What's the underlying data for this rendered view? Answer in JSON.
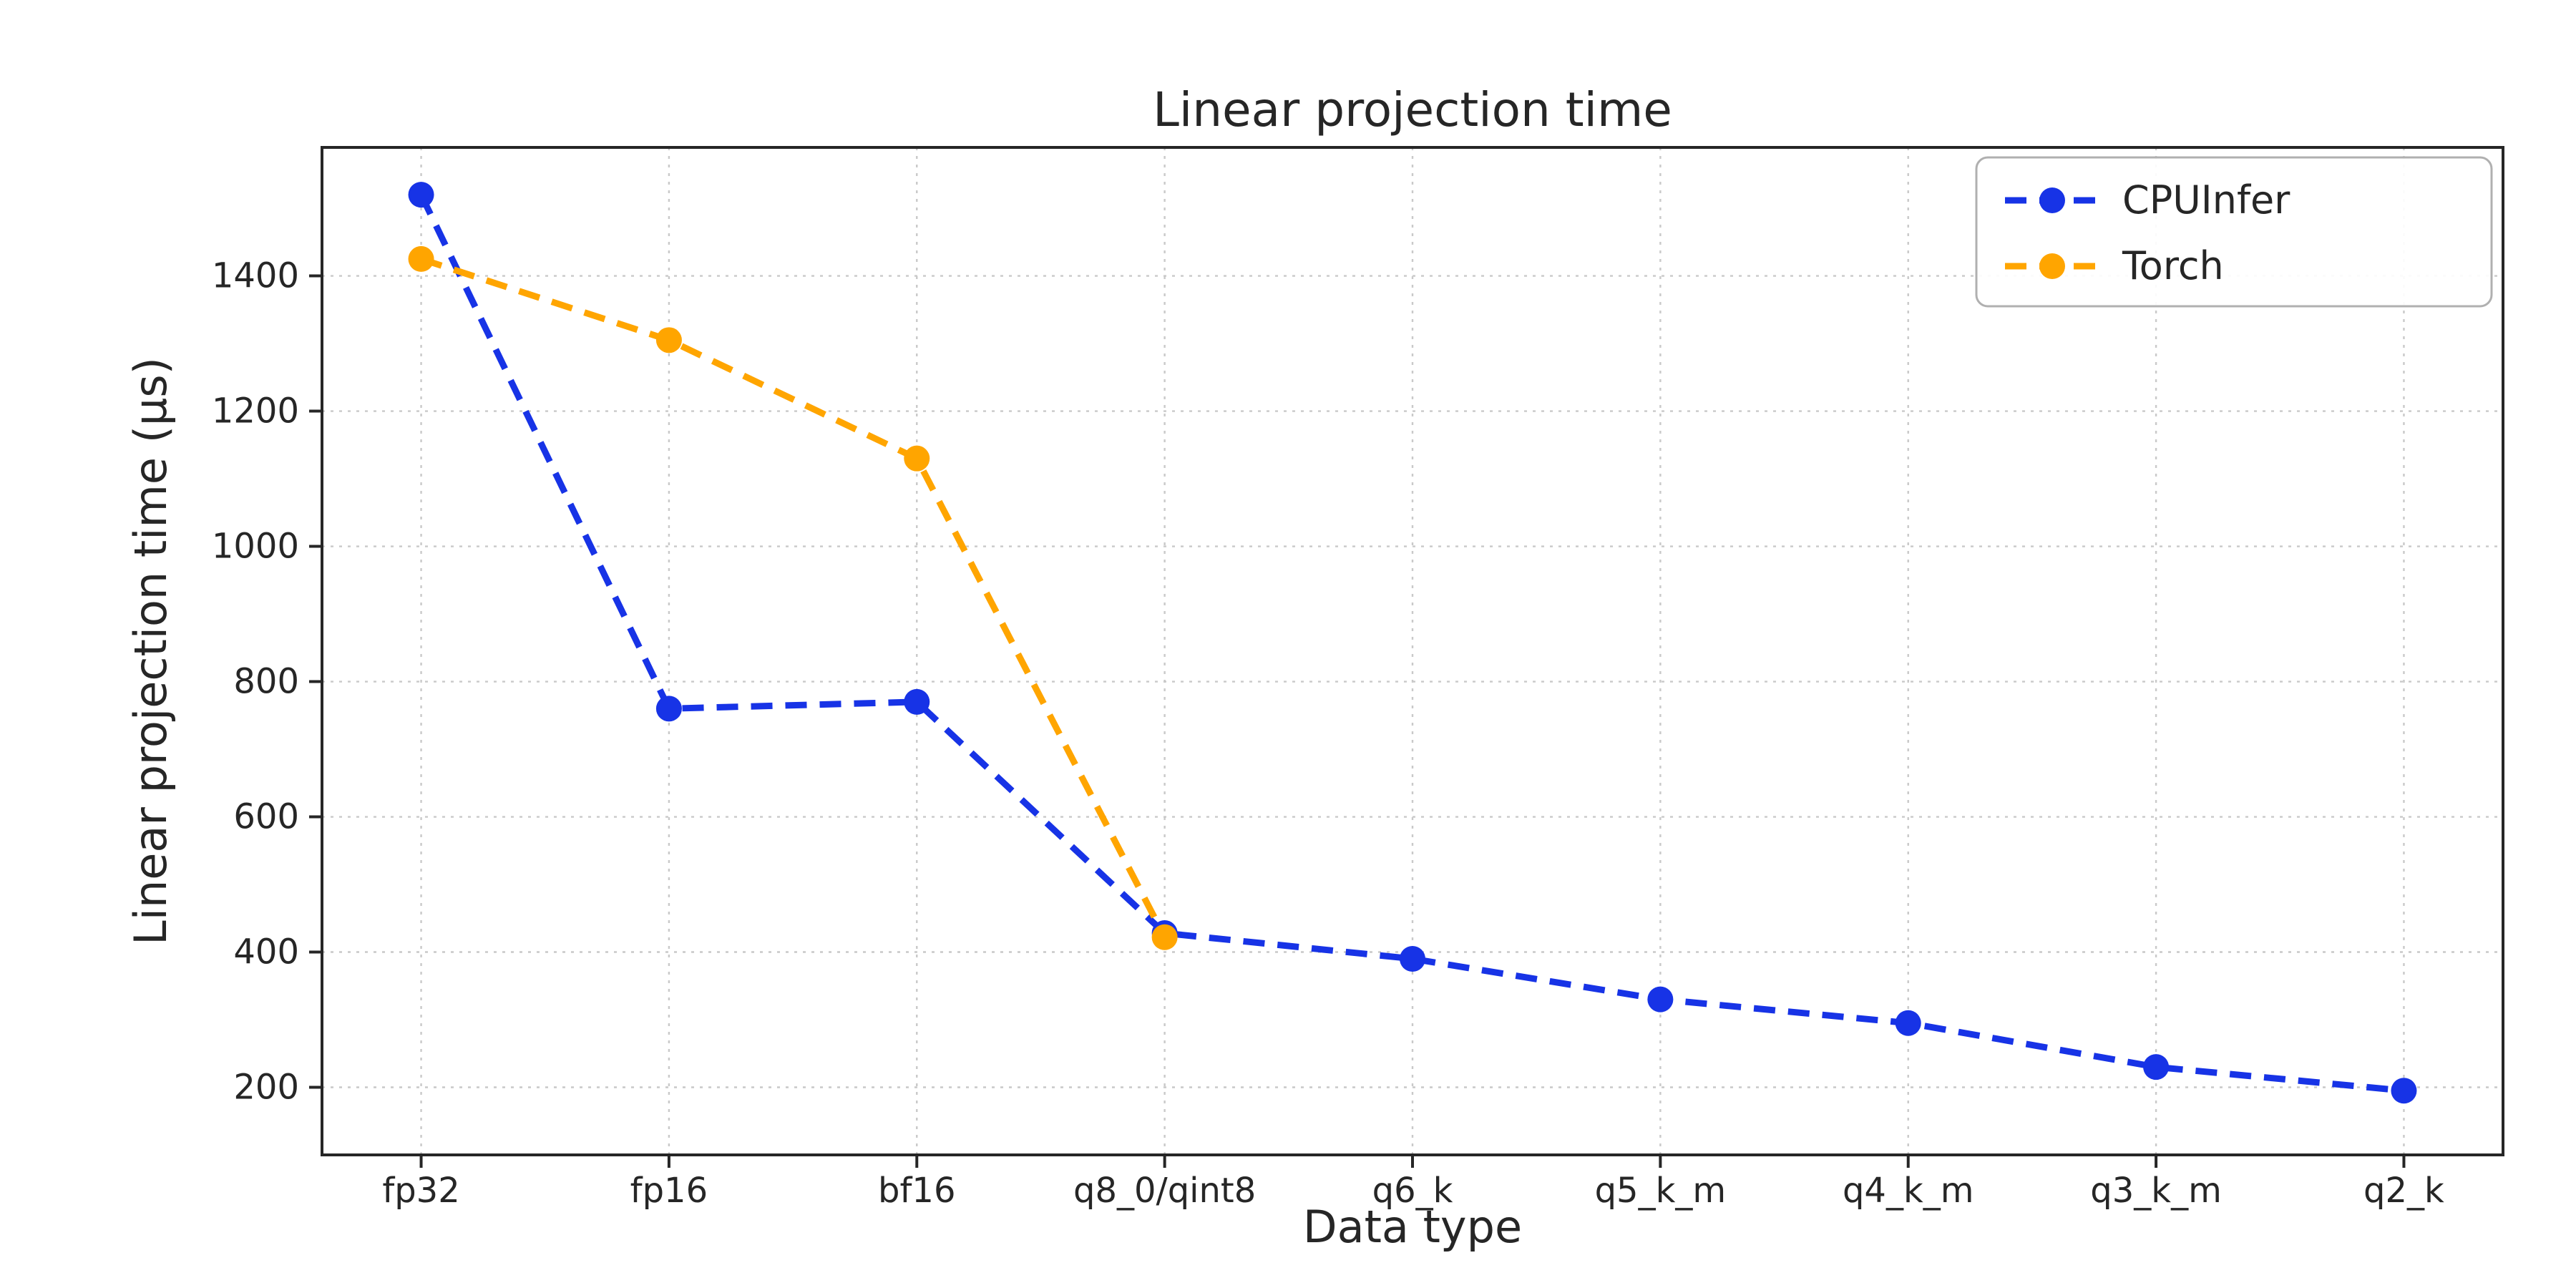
{
  "chart_data": {
    "type": "line",
    "title": "Linear projection time",
    "xlabel": "Data type",
    "ylabel": "Linear projection time (µs)",
    "categories": [
      "fp32",
      "fp16",
      "bf16",
      "q8_0/qint8",
      "q6_k",
      "q5_k_m",
      "q4_k_m",
      "q3_k_m",
      "q2_k"
    ],
    "series": [
      {
        "name": "CPUInfer",
        "color": "#1733e6",
        "values": [
          1520,
          760,
          770,
          428,
          390,
          330,
          295,
          230,
          195
        ]
      },
      {
        "name": "Torch",
        "color": "#ffa500",
        "values": [
          1425,
          1305,
          1130,
          422,
          null,
          null,
          null,
          null,
          null
        ]
      }
    ],
    "ylim": [
      100,
      1590
    ],
    "yticks": [
      200,
      400,
      600,
      800,
      1000,
      1200,
      1400
    ],
    "grid": true,
    "legend_position": "upper right",
    "line_style": "dashed",
    "marker": "circle",
    "spine_color": "#262626",
    "grid_color": "#c9c9c9",
    "background_color": "#ffffff"
  }
}
